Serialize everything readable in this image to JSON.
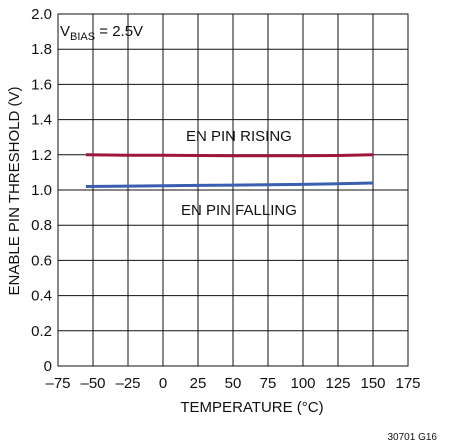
{
  "chart_data": {
    "type": "line",
    "xlabel": "TEMPERATURE (°C)",
    "ylabel": "ENABLE PIN THRESHOLD (V)",
    "xlim": [
      -75,
      175
    ],
    "ylim": [
      0,
      2.0
    ],
    "xticks": [
      -75,
      -50,
      -25,
      0,
      25,
      50,
      75,
      100,
      125,
      150,
      175
    ],
    "xtick_labels": [
      "–75",
      "–50",
      "–25",
      "0",
      "25",
      "50",
      "75",
      "100",
      "125",
      "150",
      "175"
    ],
    "yticks": [
      0,
      0.2,
      0.4,
      0.6,
      0.8,
      1.0,
      1.2,
      1.4,
      1.6,
      1.8,
      2.0
    ],
    "ytick_labels": [
      "0",
      "0.2",
      "0.4",
      "0.6",
      "0.8",
      "1.0",
      "1.2",
      "1.4",
      "1.6",
      "1.8",
      "2.0"
    ],
    "grid": true,
    "annotation": {
      "main": "V",
      "sub": "BIAS",
      "rest": " = 2.5V"
    },
    "series": [
      {
        "name": "EN PIN RISING",
        "color": "#a0163a",
        "x": [
          -55,
          -25,
          0,
          25,
          50,
          75,
          100,
          125,
          150
        ],
        "y": [
          1.2,
          1.198,
          1.197,
          1.196,
          1.195,
          1.195,
          1.195,
          1.196,
          1.2
        ]
      },
      {
        "name": "EN PIN FALLING",
        "color": "#3a5fb0",
        "x": [
          -55,
          -25,
          0,
          25,
          50,
          75,
          100,
          125,
          150
        ],
        "y": [
          1.02,
          1.022,
          1.024,
          1.026,
          1.028,
          1.03,
          1.032,
          1.035,
          1.04
        ]
      }
    ]
  },
  "figure_id": "30701 G16"
}
